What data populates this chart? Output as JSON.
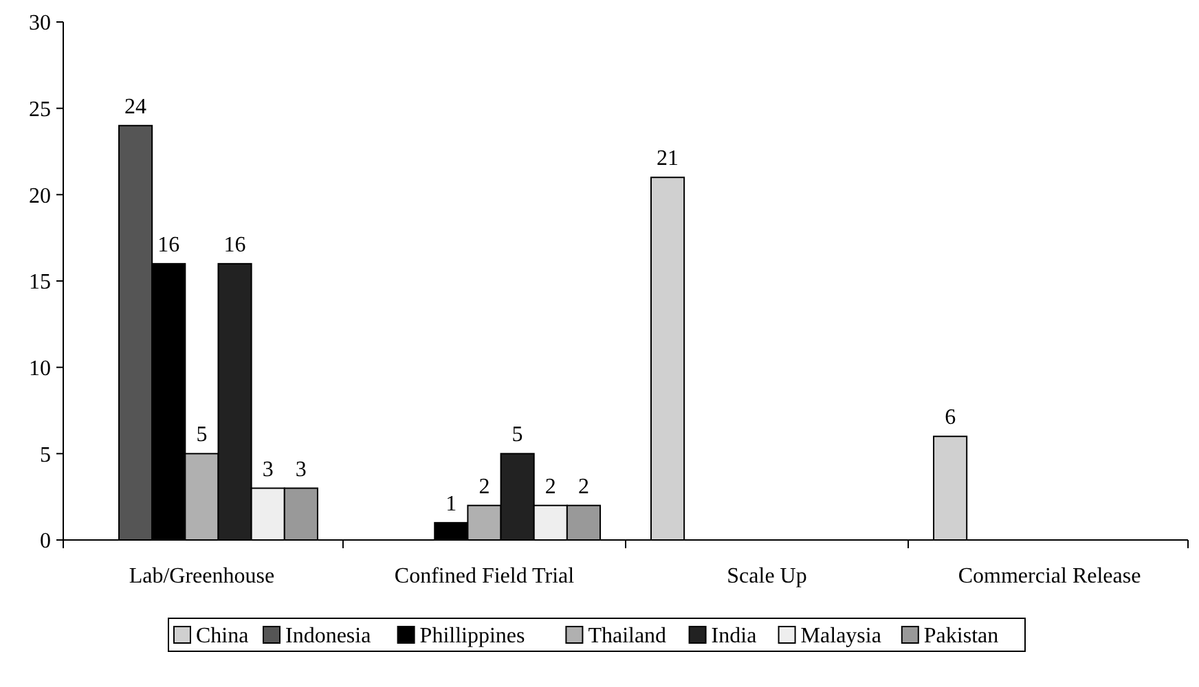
{
  "chart_data": {
    "type": "bar",
    "categories": [
      "Lab/Greenhouse",
      "Confined Field Trial",
      "Scale Up",
      "Commercial Release"
    ],
    "series": [
      {
        "name": "China",
        "color": "#d0d0d0",
        "values": [
          null,
          null,
          21,
          6
        ]
      },
      {
        "name": "Indonesia",
        "color": "#555555",
        "values": [
          24,
          null,
          null,
          null
        ]
      },
      {
        "name": "Phillippines",
        "color": "#000000",
        "values": [
          16,
          1,
          null,
          null
        ]
      },
      {
        "name": "Thailand",
        "color": "#b0b0b0",
        "values": [
          5,
          2,
          null,
          null
        ]
      },
      {
        "name": "India",
        "color": "#222222",
        "values": [
          16,
          5,
          null,
          null
        ]
      },
      {
        "name": "Malaysia",
        "color": "#eeeeee",
        "values": [
          3,
          2,
          null,
          null
        ]
      },
      {
        "name": "Pakistan",
        "color": "#999999",
        "values": [
          3,
          2,
          null,
          null
        ]
      }
    ],
    "ylim": [
      0,
      30
    ],
    "yticks": [
      0,
      5,
      10,
      15,
      20,
      25,
      30
    ],
    "grid": false,
    "legend": "bottom",
    "data_labels": true
  }
}
